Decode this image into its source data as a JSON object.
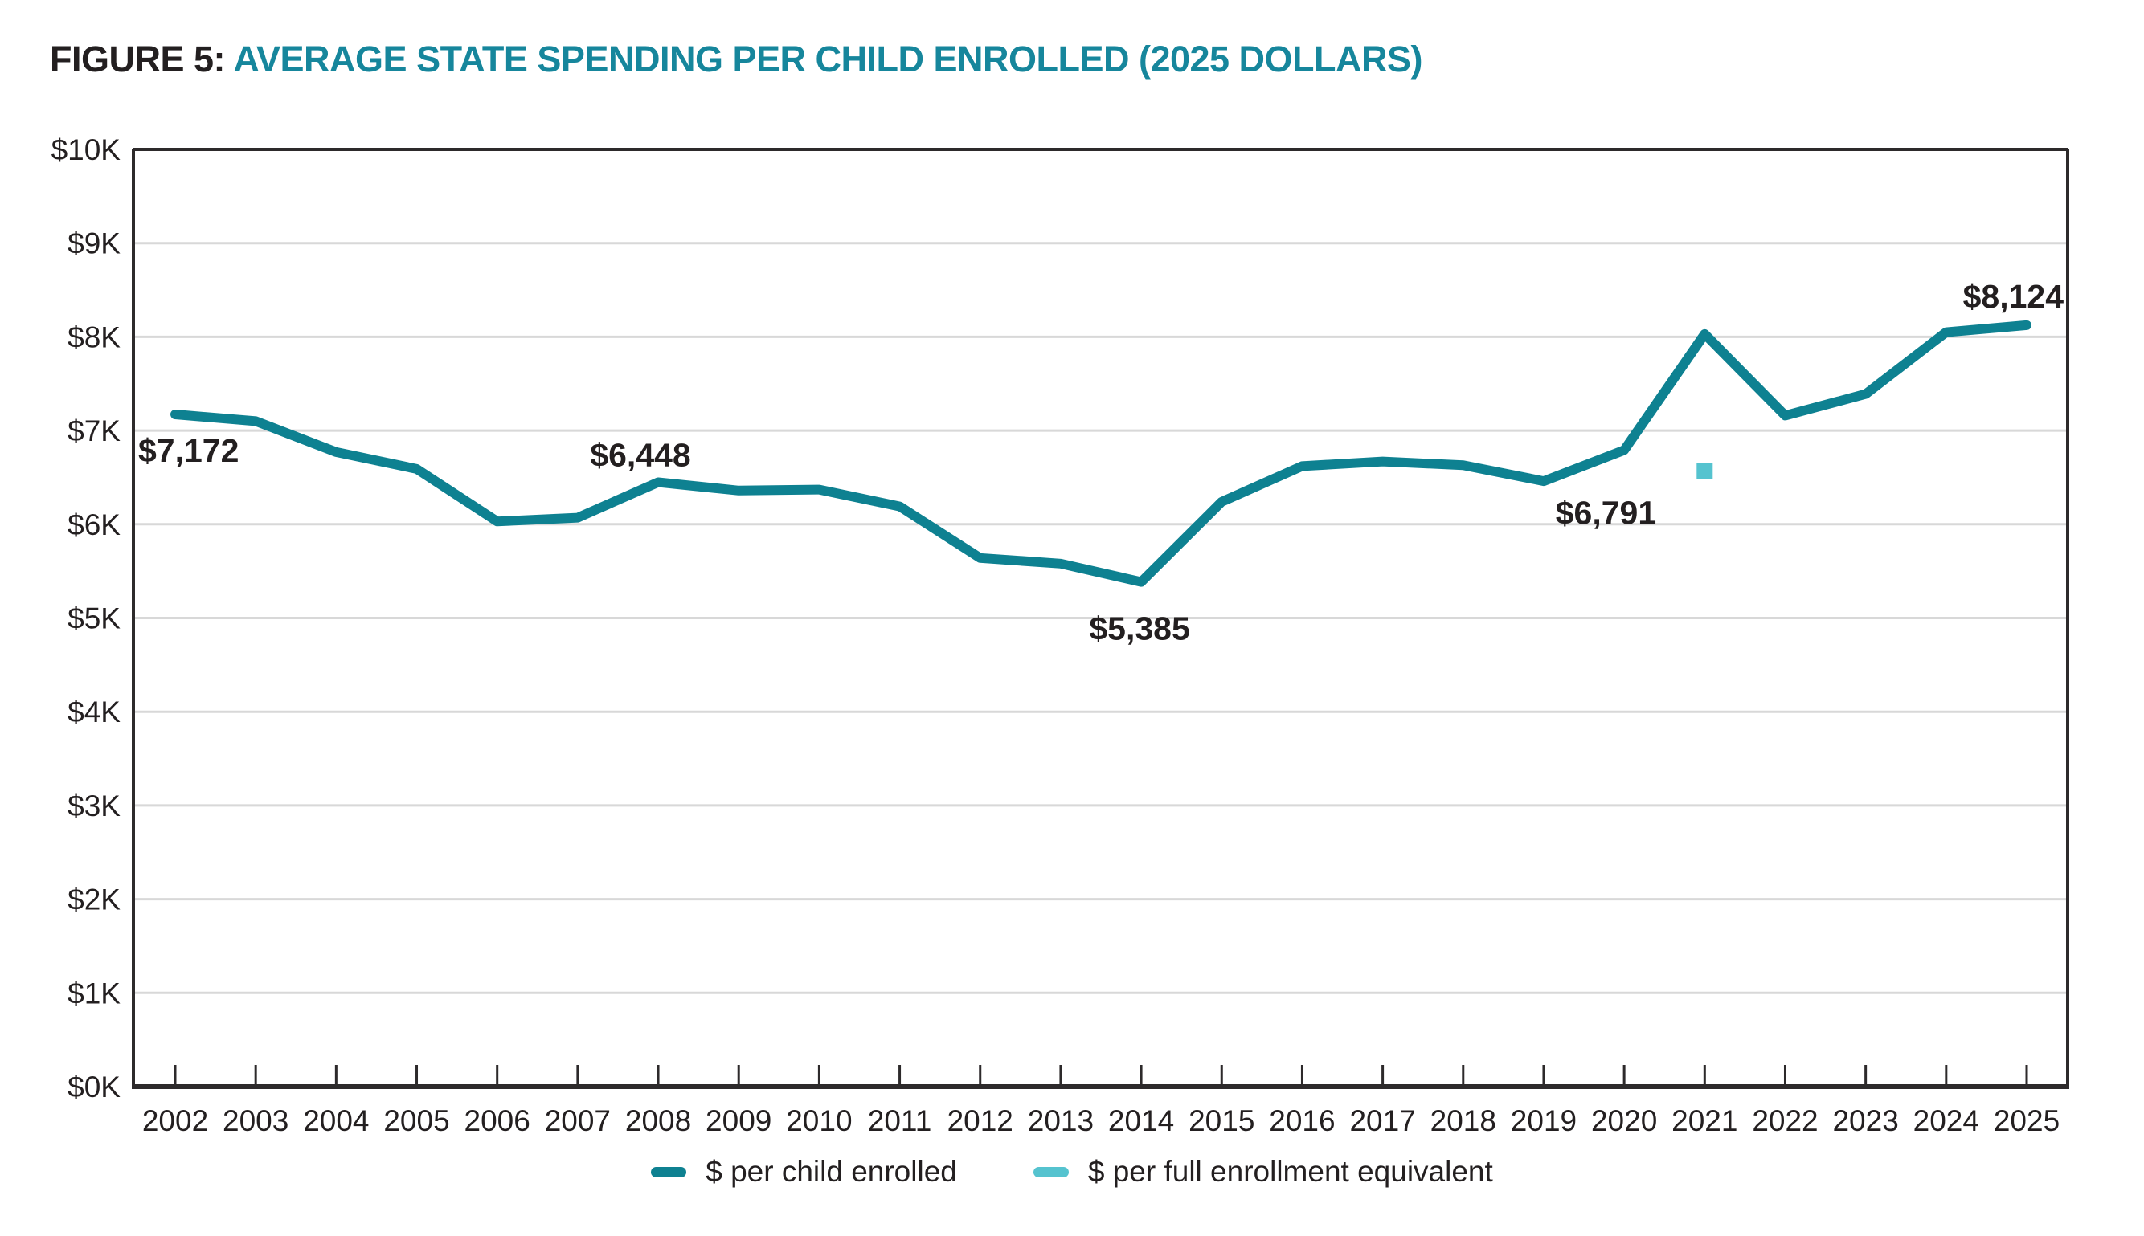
{
  "title": {
    "prefix": "FIGURE 5:",
    "main": "AVERAGE STATE SPENDING PER CHILD ENROLLED (2025 DOLLARS)"
  },
  "colors": {
    "title_prefix": "#231F20",
    "title_accent": "#16869C",
    "line": "#0E8191",
    "fee_point": "#55C3CF",
    "text": "#231F20",
    "grid": "#D8D8D8",
    "axis": "#2D2A2B"
  },
  "chart_data": {
    "type": "line",
    "x": [
      2002,
      2003,
      2004,
      2005,
      2006,
      2007,
      2008,
      2009,
      2010,
      2011,
      2012,
      2013,
      2014,
      2015,
      2016,
      2017,
      2018,
      2019,
      2020,
      2021,
      2022,
      2023,
      2024,
      2025
    ],
    "series": [
      {
        "name": "$ per child enrolled",
        "color": "#0E8191",
        "values": [
          7172,
          7100,
          6770,
          6590,
          6030,
          6070,
          6448,
          6360,
          6370,
          6190,
          5640,
          5580,
          5385,
          6240,
          6620,
          6670,
          6630,
          6460,
          6791,
          8030,
          7160,
          7390,
          8050,
          8124
        ]
      },
      {
        "name": "$ per full enrollment equivalent",
        "color": "#55C3CF",
        "marker": "square",
        "points": [
          {
            "x": 2021,
            "value": 6570
          }
        ]
      }
    ],
    "annotations": [
      {
        "year": 2002,
        "value": 7172,
        "text": "$7,172",
        "placement": "below-start"
      },
      {
        "year": 2008,
        "value": 6448,
        "text": "$6,448",
        "placement": "above"
      },
      {
        "year": 2014,
        "value": 5385,
        "text": "$5,385",
        "placement": "below"
      },
      {
        "year": 2020,
        "value": 6791,
        "text": "$6,791",
        "placement": "below-end"
      },
      {
        "year": 2025,
        "value": 8124,
        "text": "$8,124",
        "placement": "above-end"
      }
    ],
    "legend": [
      {
        "label": "$ per child enrolled"
      },
      {
        "label": "$ per full enrollment equivalent"
      }
    ],
    "title": "FIGURE 5: AVERAGE STATE SPENDING PER CHILD ENROLLED (2025 DOLLARS)",
    "xlabel": "",
    "ylabel": "",
    "ylim": [
      0,
      10000
    ],
    "ytick_step": 1000,
    "ytick_format": "$NK",
    "grid": "horizontal",
    "legend_position": "bottom-center"
  }
}
